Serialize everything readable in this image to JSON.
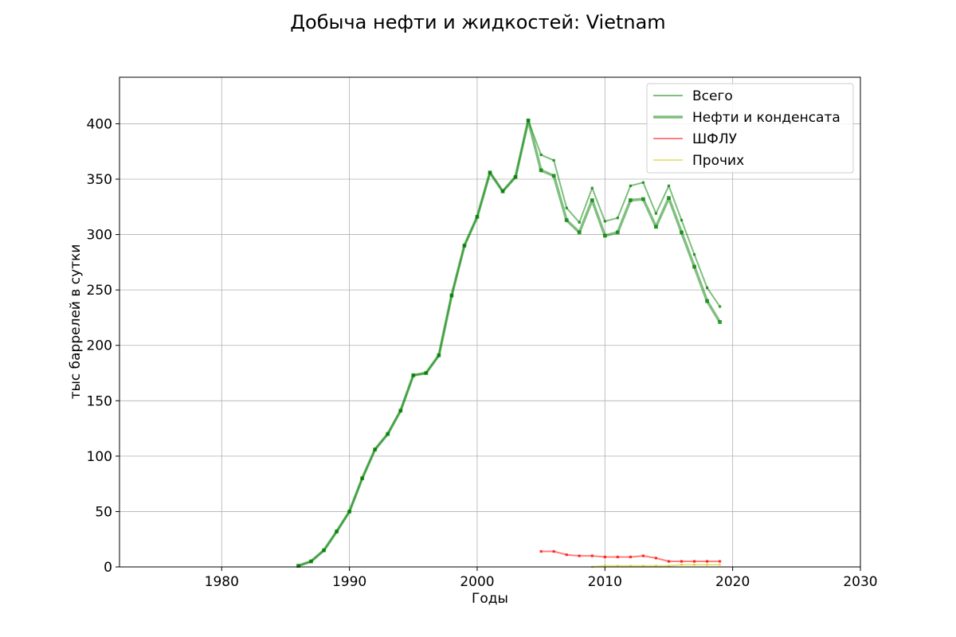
{
  "chart_data": {
    "type": "line",
    "title": "Добыча нефти и жидкостей: Vietnam",
    "xlabel": "Годы",
    "ylabel": "тыс баррелей в сутки",
    "xlim": [
      1972,
      2030
    ],
    "ylim": [
      0,
      442
    ],
    "xticks": [
      1980,
      1990,
      2000,
      2010,
      2020,
      2030
    ],
    "yticks": [
      0,
      50,
      100,
      150,
      200,
      250,
      300,
      350,
      400
    ],
    "grid": true,
    "legend_position": "top-right",
    "series": [
      {
        "name": "Всего",
        "color": "#008000",
        "x": [
          1986,
          1987,
          1988,
          1989,
          1990,
          1991,
          1992,
          1993,
          1994,
          1995,
          1996,
          1997,
          1998,
          1999,
          2000,
          2001,
          2002,
          2003,
          2004,
          2005,
          2006,
          2007,
          2008,
          2009,
          2010,
          2011,
          2012,
          2013,
          2014,
          2015,
          2016,
          2017,
          2018,
          2019
        ],
        "values": [
          1,
          5,
          15,
          32,
          50,
          80,
          106,
          120,
          141,
          173,
          175,
          191,
          245,
          290,
          316,
          356,
          339,
          352,
          403,
          372,
          367,
          324,
          311,
          342,
          312,
          315,
          344,
          347,
          319,
          344,
          313,
          282,
          252,
          235
        ]
      },
      {
        "name": "Нефти и конденсата",
        "color": "#008000",
        "x": [
          1986,
          1987,
          1988,
          1989,
          1990,
          1991,
          1992,
          1993,
          1994,
          1995,
          1996,
          1997,
          1998,
          1999,
          2000,
          2001,
          2002,
          2003,
          2004,
          2005,
          2006,
          2007,
          2008,
          2009,
          2010,
          2011,
          2012,
          2013,
          2014,
          2015,
          2016,
          2017,
          2018,
          2019
        ],
        "values": [
          1,
          5,
          15,
          32,
          50,
          80,
          106,
          120,
          141,
          173,
          175,
          191,
          245,
          290,
          316,
          356,
          339,
          352,
          403,
          358,
          353,
          313,
          302,
          331,
          299,
          302,
          331,
          332,
          307,
          333,
          302,
          271,
          240,
          221
        ]
      },
      {
        "name": "ШФЛУ",
        "color": "#ff0000",
        "x": [
          2005,
          2006,
          2007,
          2008,
          2009,
          2010,
          2011,
          2012,
          2013,
          2014,
          2015,
          2016,
          2017,
          2018,
          2019
        ],
        "values": [
          14,
          14,
          11,
          10,
          10,
          9,
          9,
          9,
          10,
          8,
          5,
          5,
          5,
          5,
          5
        ]
      },
      {
        "name": "Прочих",
        "color": "#cccc00",
        "x": [
          2009,
          2010,
          2011,
          2012,
          2013,
          2014,
          2015,
          2016,
          2017,
          2018,
          2019
        ],
        "values": [
          0,
          1,
          1,
          1,
          1,
          1,
          1,
          2,
          2,
          2,
          2
        ]
      }
    ]
  }
}
